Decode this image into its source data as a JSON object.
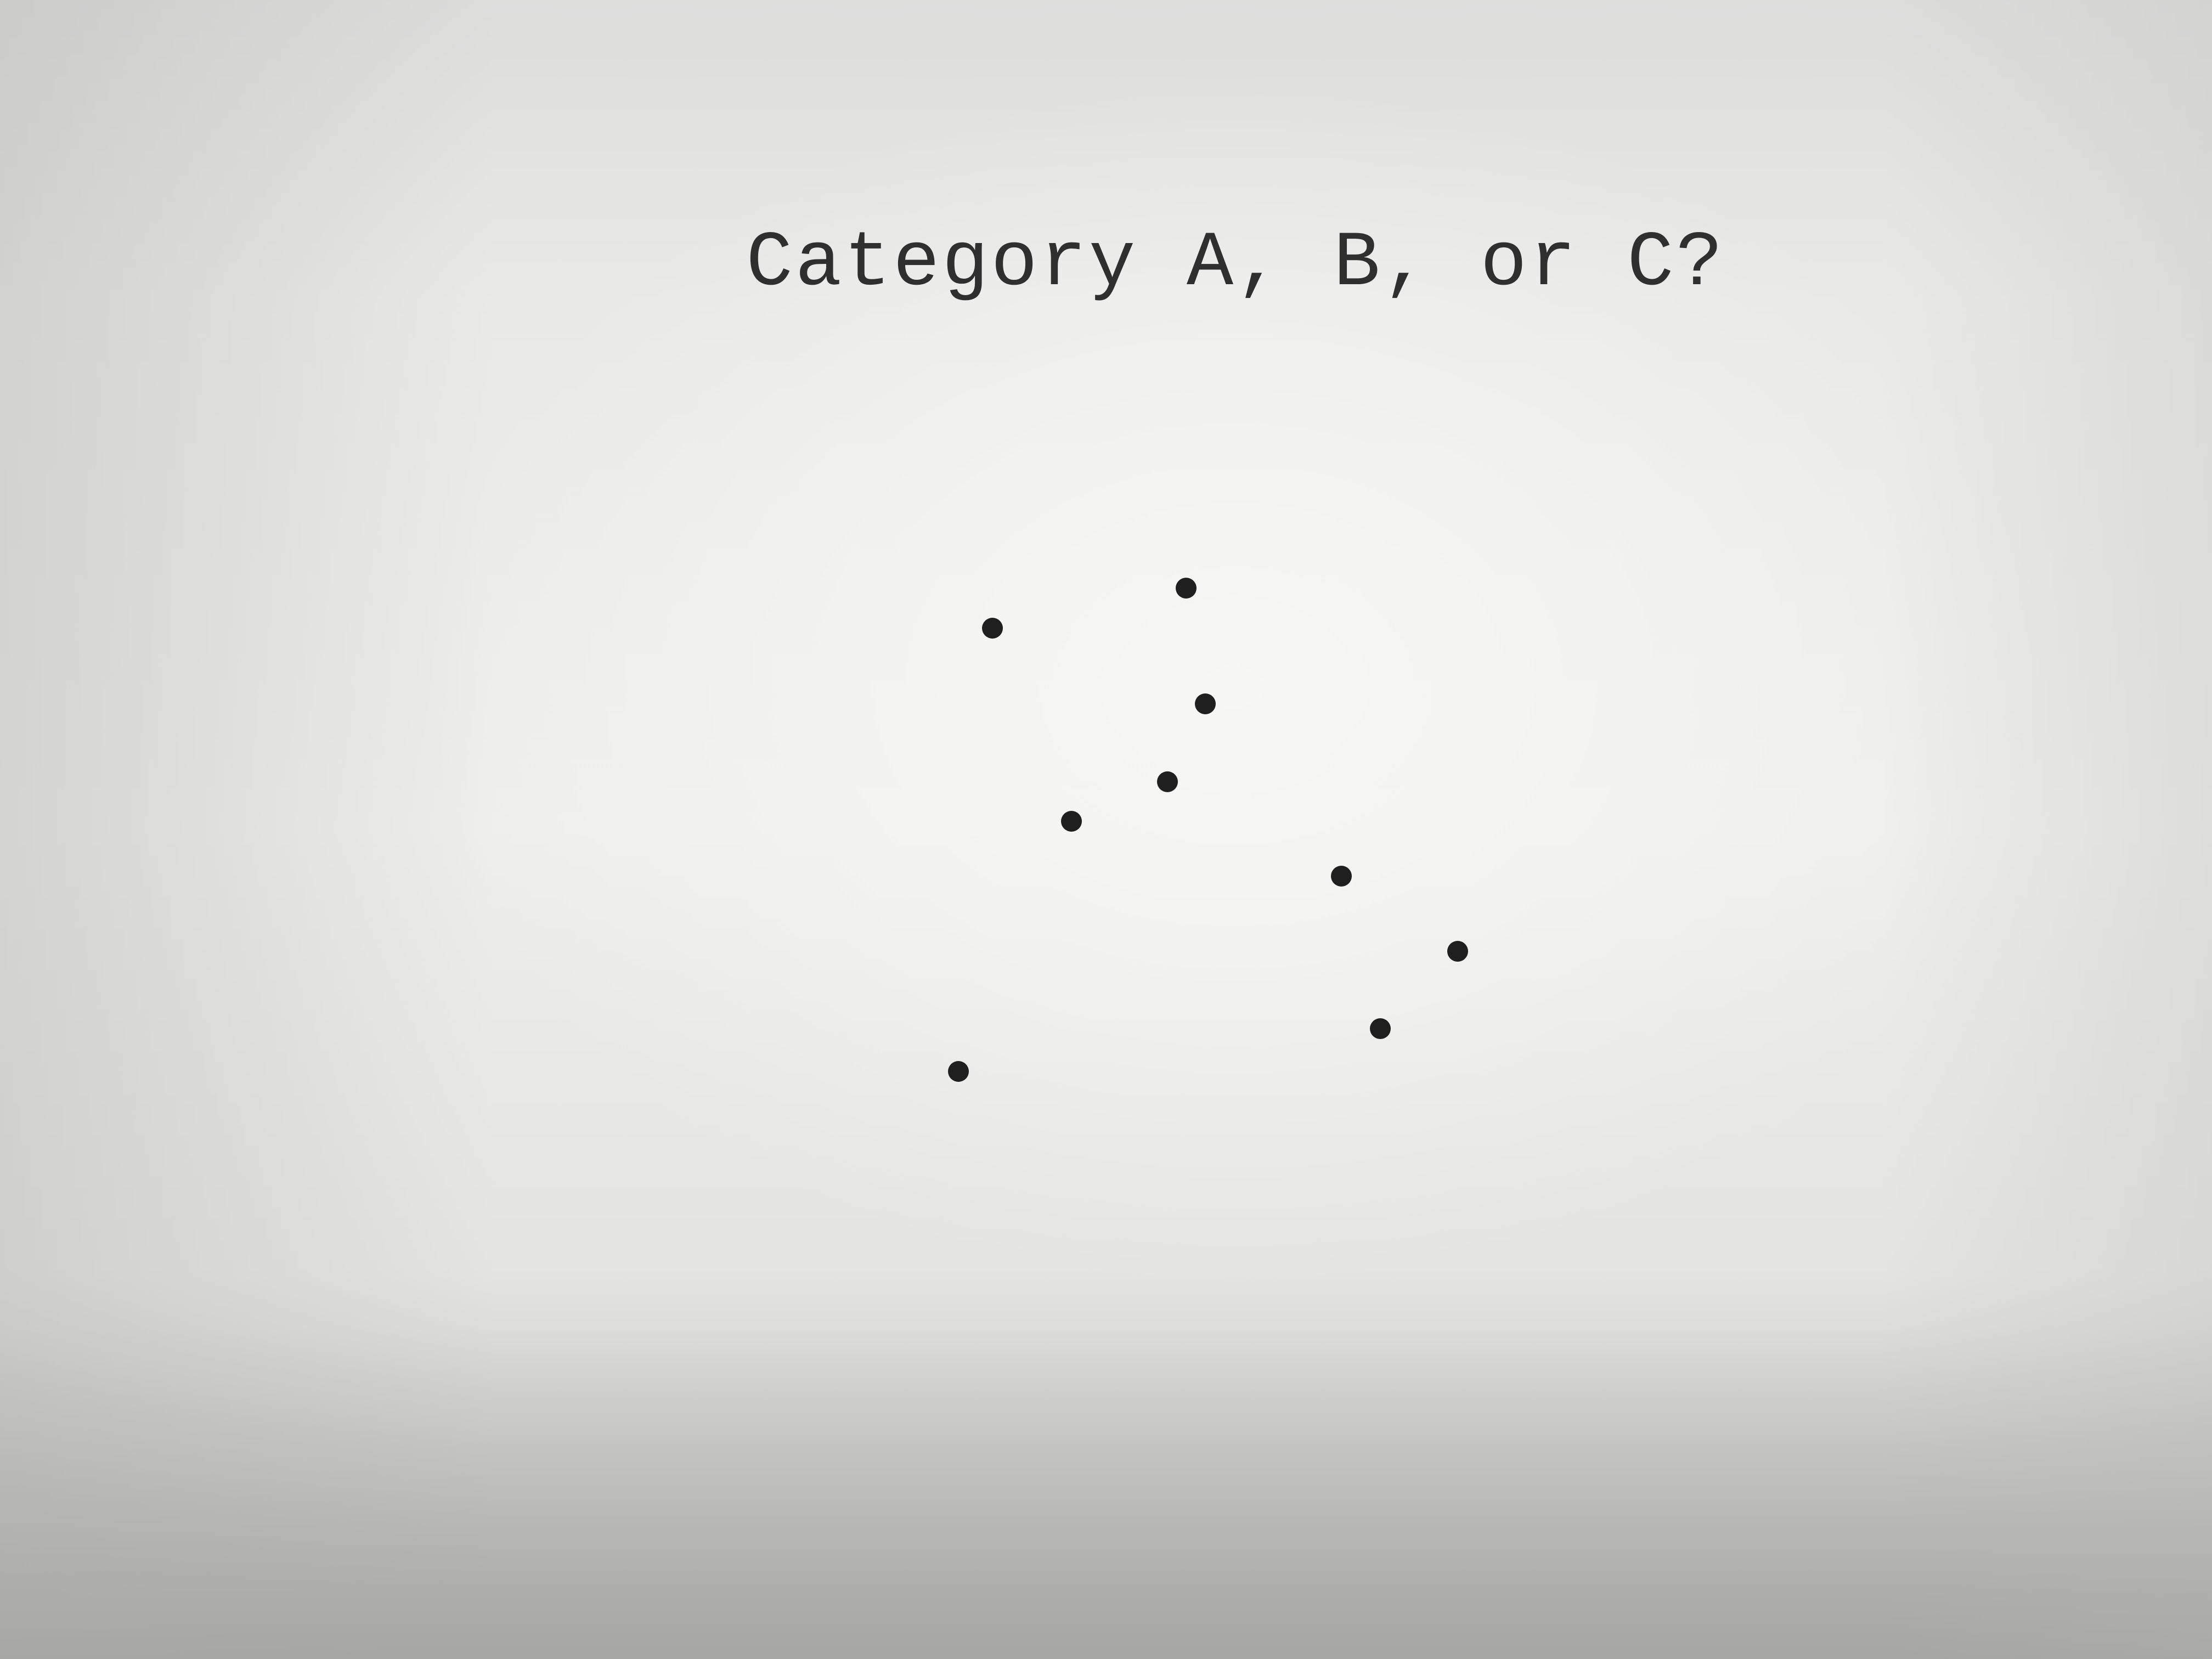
{
  "screen": {
    "background": "#ececea",
    "ink_color": "#1f1f1f"
  },
  "prompt": {
    "text": "Category A, B, or C?"
  },
  "stimulus": {
    "dot_count": 9
  }
}
